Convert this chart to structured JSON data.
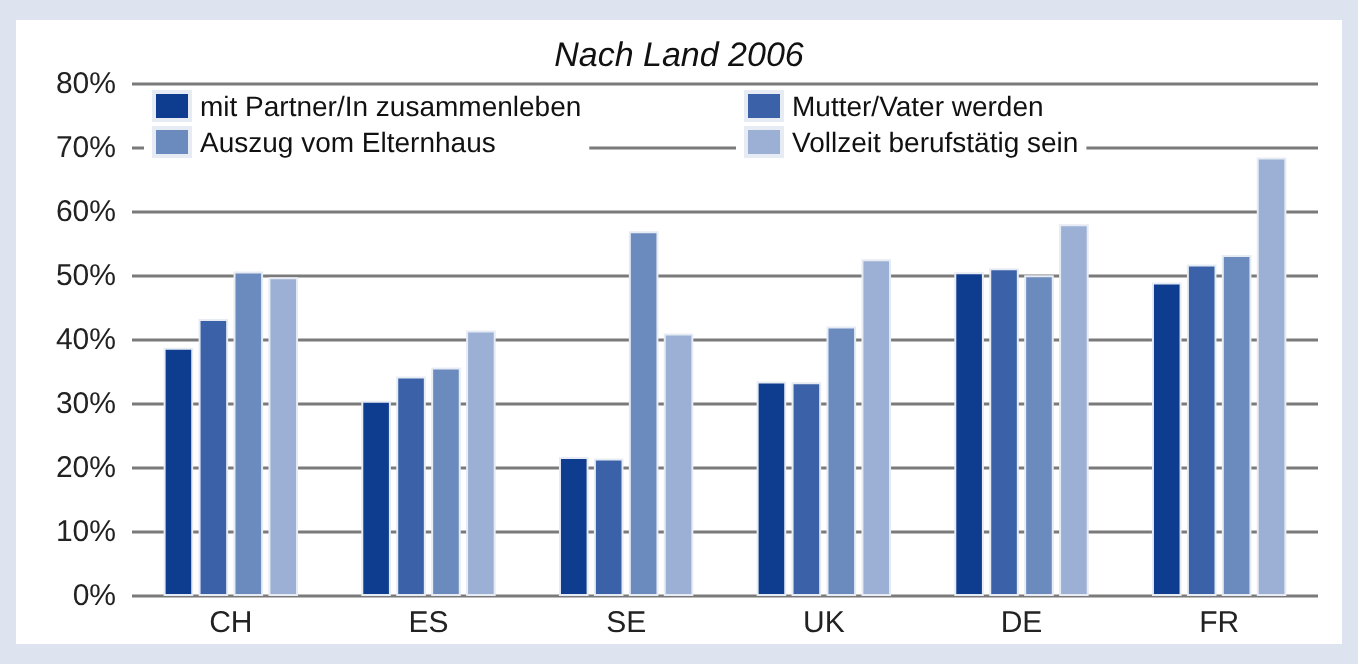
{
  "chart_data": {
    "type": "bar",
    "title": "Nach Land 2006",
    "categories": [
      "CH",
      "ES",
      "SE",
      "UK",
      "DE",
      "FR"
    ],
    "series": [
      {
        "name": "mit Partner/In zusammenleben",
        "color": "#0e3c8f",
        "values": [
          38.8,
          30.5,
          21.7,
          33.5,
          50.6,
          49.0
        ]
      },
      {
        "name": "Mutter/Vater werden",
        "color": "#3b62a8",
        "values": [
          43.3,
          34.3,
          21.5,
          33.4,
          51.2,
          51.8
        ]
      },
      {
        "name": "Auszug vom Elternhaus",
        "color": "#6b8bbf",
        "values": [
          50.7,
          35.7,
          57.0,
          42.1,
          50.1,
          53.3
        ]
      },
      {
        "name": "Vollzeit berufstätig sein",
        "color": "#9bb0d4",
        "values": [
          49.8,
          41.5,
          41.0,
          52.6,
          58.1,
          68.5
        ]
      }
    ],
    "ylim": [
      0,
      80
    ],
    "yticks": [
      {
        "value": 0,
        "label": "0%"
      },
      {
        "value": 10,
        "label": "10%"
      },
      {
        "value": 20,
        "label": "20%"
      },
      {
        "value": 30,
        "label": "30%"
      },
      {
        "value": 40,
        "label": "40%"
      },
      {
        "value": 50,
        "label": "50%"
      },
      {
        "value": 60,
        "label": "60%"
      },
      {
        "value": 70,
        "label": "70%"
      },
      {
        "value": 80,
        "label": "80%"
      }
    ],
    "grid": "y",
    "legend": "top"
  }
}
